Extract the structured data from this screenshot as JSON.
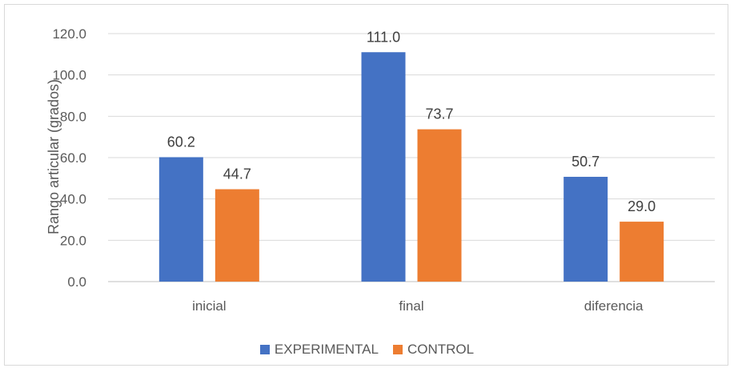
{
  "chart_data": {
    "type": "bar",
    "title": "",
    "xlabel": "",
    "ylabel": "Rango articular (grados)",
    "categories": [
      "inicial",
      "final",
      "diferencia"
    ],
    "series": [
      {
        "name": "EXPERIMENTAL",
        "color": "#4472c4",
        "values": [
          60.2,
          111.0,
          50.7
        ]
      },
      {
        "name": "CONTROL",
        "color": "#ed7d31",
        "values": [
          44.7,
          73.7,
          29.0
        ]
      }
    ],
    "ylim": [
      0,
      120
    ],
    "yticks": [
      "0.0",
      "20.0",
      "40.0",
      "60.0",
      "80.0",
      "100.0",
      "120.0"
    ],
    "value_labels": [
      [
        "60.2",
        "111.0",
        "50.7"
      ],
      [
        "44.7",
        "73.7",
        "29.0"
      ]
    ],
    "grid": true,
    "legend_position": "bottom"
  }
}
